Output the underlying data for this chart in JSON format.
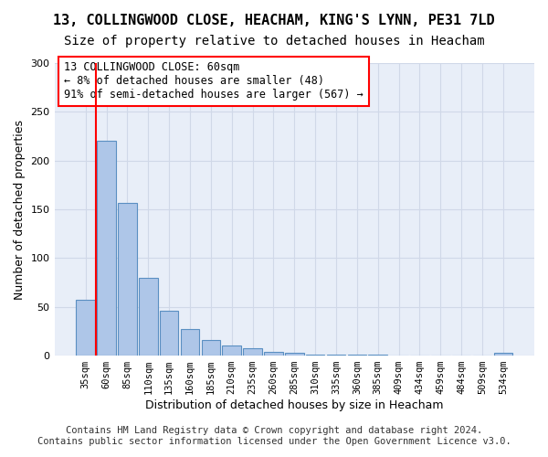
{
  "title": "13, COLLINGWOOD CLOSE, HEACHAM, KING'S LYNN, PE31 7LD",
  "subtitle": "Size of property relative to detached houses in Heacham",
  "xlabel": "Distribution of detached houses by size in Heacham",
  "ylabel": "Number of detached properties",
  "footer_line1": "Contains HM Land Registry data © Crown copyright and database right 2024.",
  "footer_line2": "Contains public sector information licensed under the Open Government Licence v3.0.",
  "categories": [
    "35sqm",
    "60sqm",
    "85sqm",
    "110sqm",
    "135sqm",
    "160sqm",
    "185sqm",
    "210sqm",
    "235sqm",
    "260sqm",
    "285sqm",
    "310sqm",
    "335sqm",
    "360sqm",
    "385sqm",
    "409sqm",
    "434sqm",
    "459sqm",
    "484sqm",
    "509sqm",
    "534sqm"
  ],
  "values": [
    57,
    220,
    157,
    80,
    46,
    27,
    16,
    10,
    8,
    4,
    3,
    1,
    1,
    1,
    1,
    0,
    0,
    0,
    0,
    0,
    3
  ],
  "bar_color": "#aec6e8",
  "bar_edge_color": "#5a8fc2",
  "grid_color": "#d0d8e8",
  "background_color": "#e8eef8",
  "annotation_box_text": "13 COLLINGWOOD CLOSE: 60sqm\n← 8% of detached houses are smaller (48)\n91% of semi-detached houses are larger (567) →",
  "annotation_box_color": "white",
  "annotation_box_edge_color": "red",
  "vline_x": 1,
  "vline_color": "red",
  "ylim": [
    0,
    300
  ],
  "yticks": [
    0,
    50,
    100,
    150,
    200,
    250,
    300
  ],
  "title_fontsize": 11,
  "subtitle_fontsize": 10,
  "annotation_fontsize": 8.5,
  "xlabel_fontsize": 9,
  "ylabel_fontsize": 9,
  "footer_fontsize": 7.5
}
